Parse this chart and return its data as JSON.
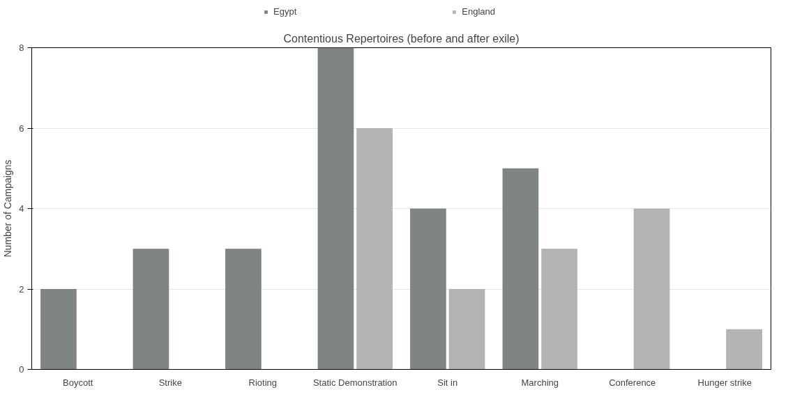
{
  "chart_data": {
    "type": "bar",
    "title": "Contentious Repertoires (before and after exile)",
    "ylabel": "Number of Campaigns",
    "categories": [
      "Boycott",
      "Strike",
      "Rioting",
      "Static Demonstration",
      "Sit in",
      "Marching",
      "Conference",
      "Hunger strike"
    ],
    "series": [
      {
        "name": "Egypt",
        "color": "#7f8582",
        "values": [
          2,
          3,
          3,
          8,
          4,
          5,
          0,
          0
        ]
      },
      {
        "name": "England",
        "color": "#b3b3b3",
        "values": [
          0,
          0,
          0,
          6,
          2,
          3,
          4,
          1
        ]
      }
    ],
    "ylim": [
      0,
      8
    ],
    "yticks": [
      0,
      2,
      4,
      6,
      8
    ],
    "grid": "y",
    "legend": "top"
  }
}
